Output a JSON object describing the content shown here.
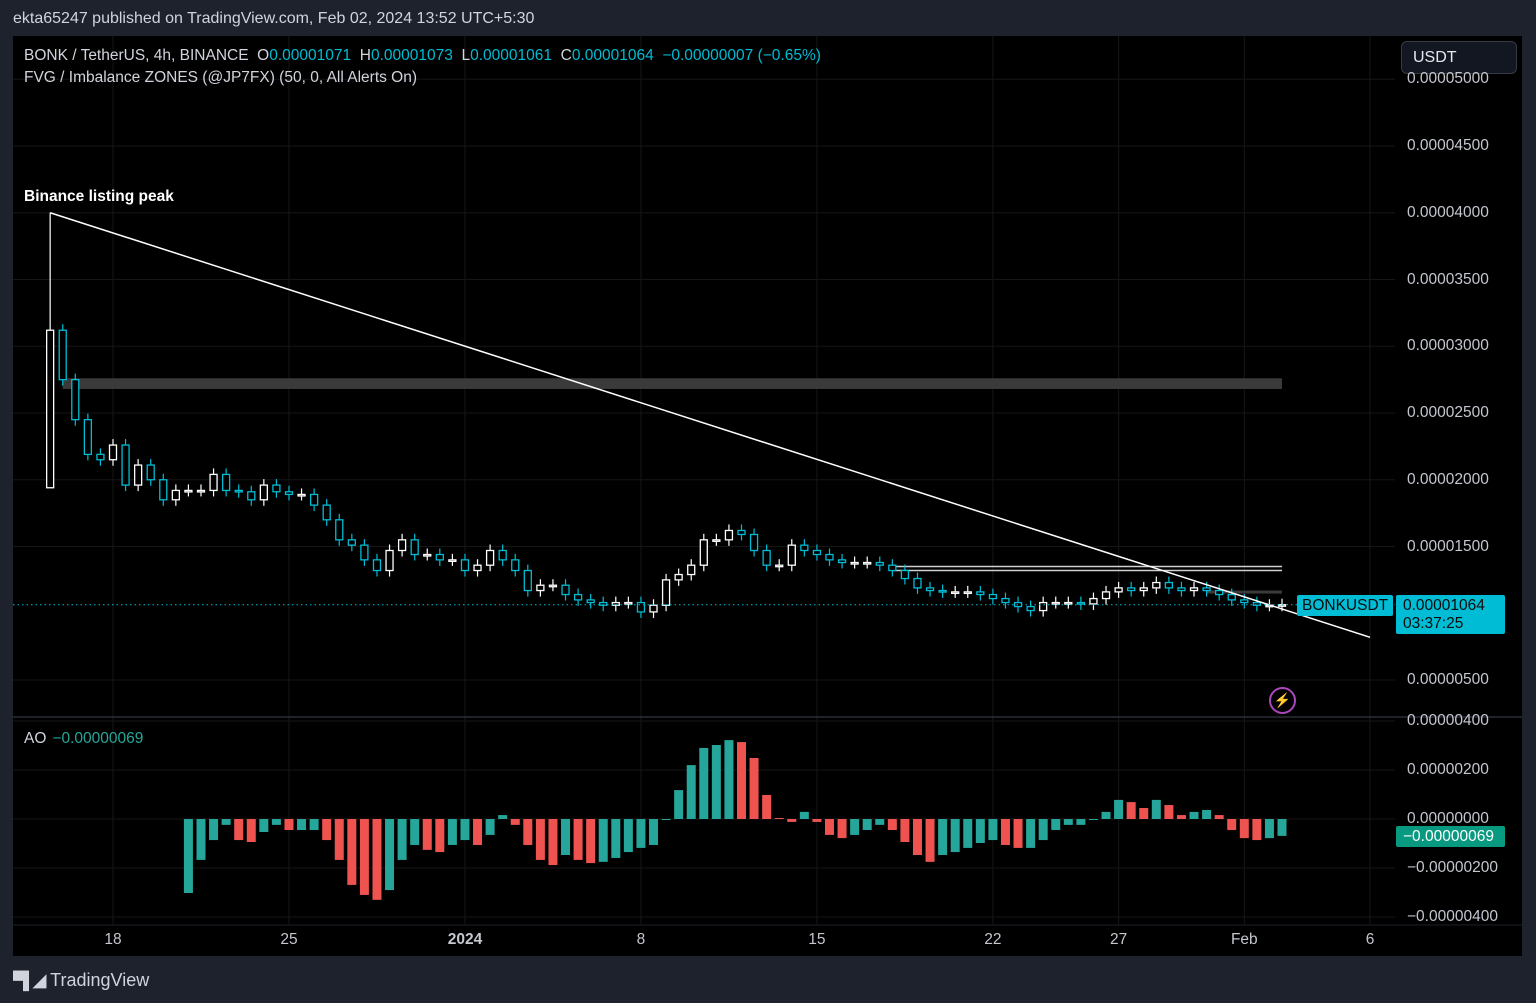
{
  "header": {
    "published": "ekta65247 published on TradingView.com, Feb 02, 2024 13:52 UTC+5:30"
  },
  "legend": {
    "symbol": "BONK / TetherUS, 4h, BINANCE",
    "o_label": "O",
    "o": "0.00001071",
    "h_label": "H",
    "h": "0.00001073",
    "l_label": "L",
    "l": "0.00001061",
    "c_label": "C",
    "c": "0.00001064",
    "change": "−0.00000007 (−0.65%)",
    "indicator": "FVG / Imbalance ZONES (@JP7FX) (50, 0, All Alerts On)"
  },
  "currency_button": "USDT",
  "annotation": {
    "text": "Binance listing peak",
    "date": "2023-12-15T12:00",
    "price": 4e-05
  },
  "price_labels": {
    "symbol": "BONKUSDT",
    "price": "0.00001064",
    "countdown": "03:37:25"
  },
  "ao": {
    "label": "AO",
    "value": "−0.00000069",
    "axis_label": "−0.00000069"
  },
  "footer": {
    "brand": "TradingView",
    "logo_mark": "17"
  },
  "colors": {
    "up": "#ffffff",
    "down": "#00bcd4",
    "ao_up": "#26a69a",
    "ao_down": "#ef5350",
    "last_price": "#00bcd4",
    "trendline": "#ffffff",
    "zone": "#3a3a3a",
    "bolt": "#ab47bc"
  },
  "icons": {
    "alert": "lightning-bolt-icon",
    "logo": "tradingview-logo-icon"
  },
  "chart_data": [
    {
      "type": "candlestick",
      "interval_shown": "4h",
      "note_resolution": "12h closes",
      "x": [
        "2023-12-15T12:00",
        "2023-12-16T00:00",
        "2023-12-16T12:00",
        "2023-12-17T00:00",
        "2023-12-17T12:00",
        "2023-12-18T00:00",
        "2023-12-18T12:00",
        "2023-12-19T00:00",
        "2023-12-19T12:00",
        "2023-12-20T00:00",
        "2023-12-20T12:00",
        "2023-12-21T00:00",
        "2023-12-21T12:00",
        "2023-12-22T00:00",
        "2023-12-22T12:00",
        "2023-12-23T00:00",
        "2023-12-23T12:00",
        "2023-12-24T00:00",
        "2023-12-24T12:00",
        "2023-12-25T00:00",
        "2023-12-25T12:00",
        "2023-12-26T00:00",
        "2023-12-26T12:00",
        "2023-12-27T00:00",
        "2023-12-27T12:00",
        "2023-12-28T00:00",
        "2023-12-28T12:00",
        "2023-12-29T00:00",
        "2023-12-29T12:00",
        "2023-12-30T00:00",
        "2023-12-30T12:00",
        "2023-12-31T00:00",
        "2023-12-31T12:00",
        "2024-01-01T00:00",
        "2024-01-01T12:00",
        "2024-01-02T00:00",
        "2024-01-02T12:00",
        "2024-01-03T00:00",
        "2024-01-03T12:00",
        "2024-01-04T00:00",
        "2024-01-04T12:00",
        "2024-01-05T00:00",
        "2024-01-05T12:00",
        "2024-01-06T00:00",
        "2024-01-06T12:00",
        "2024-01-07T00:00",
        "2024-01-07T12:00",
        "2024-01-08T00:00",
        "2024-01-08T12:00",
        "2024-01-09T00:00",
        "2024-01-09T12:00",
        "2024-01-10T00:00",
        "2024-01-10T12:00",
        "2024-01-11T00:00",
        "2024-01-11T12:00",
        "2024-01-12T00:00",
        "2024-01-12T12:00",
        "2024-01-13T00:00",
        "2024-01-13T12:00",
        "2024-01-14T00:00",
        "2024-01-14T12:00",
        "2024-01-15T00:00",
        "2024-01-15T12:00",
        "2024-01-16T00:00",
        "2024-01-16T12:00",
        "2024-01-17T00:00",
        "2024-01-17T12:00",
        "2024-01-18T00:00",
        "2024-01-18T12:00",
        "2024-01-19T00:00",
        "2024-01-19T12:00",
        "2024-01-20T00:00",
        "2024-01-20T12:00",
        "2024-01-21T00:00",
        "2024-01-21T12:00",
        "2024-01-22T00:00",
        "2024-01-22T12:00",
        "2024-01-23T00:00",
        "2024-01-23T12:00",
        "2024-01-24T00:00",
        "2024-01-24T12:00",
        "2024-01-25T00:00",
        "2024-01-25T12:00",
        "2024-01-26T00:00",
        "2024-01-26T12:00",
        "2024-01-27T00:00",
        "2024-01-27T12:00",
        "2024-01-28T00:00",
        "2024-01-28T12:00",
        "2024-01-29T00:00",
        "2024-01-29T12:00",
        "2024-01-30T00:00",
        "2024-01-30T12:00",
        "2024-01-31T00:00",
        "2024-01-31T12:00",
        "2024-02-01T00:00",
        "2024-02-01T12:00",
        "2024-02-02T00:00",
        "2024-02-02T12:00"
      ],
      "first_bar": {
        "open": 1.94e-05,
        "high": 4e-05,
        "low": 1.94e-05
      },
      "close": [
        3.12e-05,
        2.75e-05,
        2.45e-05,
        2.19e-05,
        2.15e-05,
        2.26e-05,
        1.96e-05,
        2.11e-05,
        2e-05,
        1.85e-05,
        1.92e-05,
        1.92e-05,
        1.92e-05,
        2.04e-05,
        1.92e-05,
        1.91e-05,
        1.85e-05,
        1.96e-05,
        1.91e-05,
        1.89e-05,
        1.89e-05,
        1.81e-05,
        1.7e-05,
        1.55e-05,
        1.51e-05,
        1.4e-05,
        1.32e-05,
        1.47e-05,
        1.55e-05,
        1.44e-05,
        1.44e-05,
        1.4e-05,
        1.4e-05,
        1.32e-05,
        1.36e-05,
        1.47e-05,
        1.4e-05,
        1.32e-05,
        1.17e-05,
        1.21e-05,
        1.21e-05,
        1.14e-05,
        1.1e-05,
        1.08e-05,
        1.06e-05,
        1.08e-05,
        1.08e-05,
        1.01e-05,
        1.06e-05,
        1.25e-05,
        1.29e-05,
        1.36e-05,
        1.55e-05,
        1.55e-05,
        1.62e-05,
        1.59e-05,
        1.47e-05,
        1.36e-05,
        1.36e-05,
        1.51e-05,
        1.47e-05,
        1.44e-05,
        1.4e-05,
        1.38e-05,
        1.38e-05,
        1.38e-05,
        1.36e-05,
        1.32e-05,
        1.26e-05,
        1.19e-05,
        1.17e-05,
        1.16e-05,
        1.16e-05,
        1.16e-05,
        1.14e-05,
        1.11e-05,
        1.08e-05,
        1.05e-05,
        1.02e-05,
        1.08e-05,
        1.08e-05,
        1.08e-05,
        1.07e-05,
        1.11e-05,
        1.16e-05,
        1.19e-05,
        1.17e-05,
        1.19e-05,
        1.23e-05,
        1.19e-05,
        1.17e-05,
        1.19e-05,
        1.17e-05,
        1.14e-05,
        1.1e-05,
        1.08e-05,
        1.06e-05,
        1.06e-05,
        1.064e-05
      ],
      "last_price": 1.064e-05,
      "ylim": [
        2.5e-06,
        5.1e-05
      ],
      "y_ticks": [
        "0.00005000",
        "0.00004500",
        "0.00004000",
        "0.00003500",
        "0.00003000",
        "0.00002500",
        "0.00002000",
        "0.00001500",
        "0.00000500"
      ],
      "y_tick_values": [
        5e-05,
        4.5e-05,
        4e-05,
        3.5e-05,
        3e-05,
        2.5e-05,
        2e-05,
        1.5e-05,
        5e-06
      ],
      "x_ticks": [
        {
          "label": "18",
          "date": "2023-12-18T00:00",
          "bold": false
        },
        {
          "label": "25",
          "date": "2023-12-25T00:00",
          "bold": false
        },
        {
          "label": "2024",
          "date": "2024-01-01T00:00",
          "bold": true
        },
        {
          "label": "8",
          "date": "2024-01-08T00:00",
          "bold": false
        },
        {
          "label": "15",
          "date": "2024-01-15T00:00",
          "bold": false
        },
        {
          "label": "22",
          "date": "2024-01-22T00:00",
          "bold": false
        },
        {
          "label": "27",
          "date": "2024-01-27T00:00",
          "bold": false
        },
        {
          "label": "Feb",
          "date": "2024-02-01T00:00",
          "bold": false
        },
        {
          "label": "6",
          "date": "2024-02-06T00:00",
          "bold": false
        }
      ],
      "trendline": [
        {
          "date": "2023-12-15T12:00",
          "price": 4e-05
        },
        {
          "date": "2024-02-06T00:00",
          "price": 8.2e-06
        }
      ],
      "zones": [
        {
          "from": "2023-12-16T00:00",
          "to": "2024-02-02T12:00",
          "low": 2.68e-05,
          "high": 2.76e-05,
          "kind": "band"
        },
        {
          "from": "2024-01-18T00:00",
          "to": "2024-02-02T12:00",
          "price": 1.35e-05,
          "kind": "line"
        },
        {
          "from": "2024-01-18T00:00",
          "to": "2024-02-02T12:00",
          "price": 1.32e-05,
          "kind": "line"
        },
        {
          "from": "2024-01-30T12:00",
          "to": "2024-02-02T12:00",
          "low": 1.15e-05,
          "high": 1.17e-05,
          "kind": "band"
        }
      ],
      "grid": true
    },
    {
      "type": "histogram",
      "title": "AO",
      "x_start_index": 11,
      "values": [
        -3.02e-06,
        -1.67e-06,
        -8.6e-07,
        -2.4e-07,
        -8.6e-07,
        -9.4e-07,
        -5.3e-07,
        -2.4e-07,
        -4.5e-07,
        -4.5e-07,
        -4.5e-07,
        -8.6e-07,
        -1.67e-06,
        -2.69e-06,
        -3.1e-06,
        -3.3e-06,
        -2.9e-06,
        -1.67e-06,
        -1.06e-06,
        -1.26e-06,
        -1.35e-06,
        -1.06e-06,
        -8.6e-07,
        -1.06e-06,
        -6.5e-07,
        1.6e-07,
        -2.4e-07,
        -1.06e-06,
        -1.67e-06,
        -1.88e-06,
        -1.47e-06,
        -1.67e-06,
        -1.8e-06,
        -1.75e-06,
        -1.59e-06,
        -1.35e-06,
        -1.18e-06,
        -1.06e-06,
        -4e-08,
        1.18e-06,
        2.2e-06,
        2.9e-06,
        3.02e-06,
        3.22e-06,
        3.14e-06,
        2.49e-06,
        9.8e-07,
        4e-08,
        -1.2e-07,
        2.9e-07,
        -1.2e-07,
        -6.5e-07,
        -7.8e-07,
        -6.5e-07,
        -4.5e-07,
        -2.4e-07,
        -4.5e-07,
        -9.4e-07,
        -1.47e-06,
        -1.75e-06,
        -1.47e-06,
        -1.35e-06,
        -1.18e-06,
        -9.8e-07,
        -8.6e-07,
        -1.06e-06,
        -1.18e-06,
        -1.18e-06,
        -8.6e-07,
        -4.5e-07,
        -2.4e-07,
        -2.4e-07,
        -4e-08,
        2.9e-07,
        7.8e-07,
        6.9e-07,
        4.5e-07,
        7.8e-07,
        5.7e-07,
        1.6e-07,
        2.9e-07,
        3.7e-07,
        1.6e-07,
        -4.5e-07,
        -7.8e-07,
        -8.6e-07,
        -7.8e-07,
        -6.9e-07
      ],
      "ylim": [
        -4.2e-06,
        4.2e-06
      ],
      "y_ticks": [
        "0.00000400",
        "0.00000200",
        "0.00000000",
        "−0.00000200",
        "−0.00000400"
      ],
      "y_tick_values": [
        4e-06,
        2e-06,
        0,
        -2e-06,
        -4e-06
      ]
    }
  ]
}
